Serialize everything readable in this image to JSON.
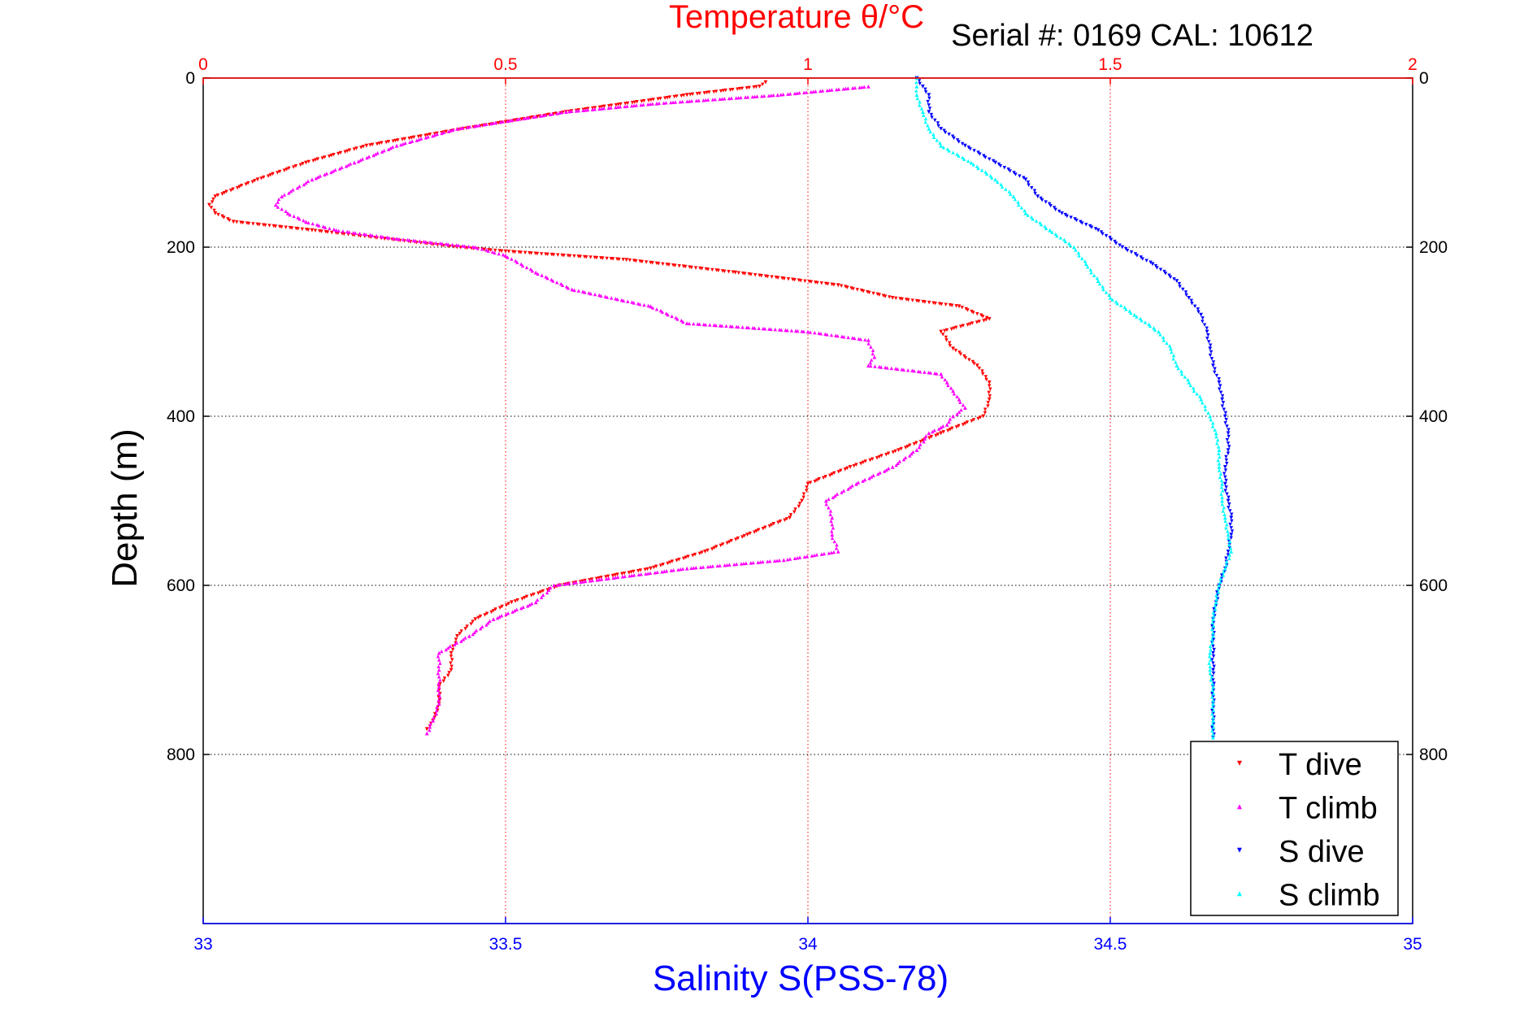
{
  "chart_data": {
    "type": "scatter",
    "title": "Temperature θ/°C",
    "subtitle": "Serial #: 0169 CAL: 10612",
    "xlabel": "Salinity S(PSS-78)",
    "ylabel": "Depth (m)",
    "x_bottom_label_color": "#0000ff",
    "x_top_label_color": "#ff0000",
    "y_axis": {
      "range": [
        0,
        1000
      ],
      "reversed": true,
      "ticks": [
        0,
        200,
        400,
        600,
        800
      ],
      "tick_labels": [
        "0",
        "200",
        "400",
        "600",
        "800"
      ]
    },
    "x_top_axis": {
      "quantity": "temperature",
      "range": [
        0,
        2
      ],
      "ticks": [
        0,
        0.5,
        1,
        1.5,
        2
      ],
      "tick_labels": [
        "0",
        "0.5",
        "1",
        "1.5",
        "2"
      ]
    },
    "x_bottom_axis": {
      "quantity": "salinity",
      "range": [
        33,
        35
      ],
      "ticks": [
        33,
        33.5,
        34,
        34.5,
        35
      ],
      "tick_labels": [
        "33",
        "33.5",
        "34",
        "34.5",
        "35"
      ]
    },
    "grid": {
      "horizontal": true,
      "vertical": true,
      "horizontal_color": "#000000",
      "vertical_color": "#ff0000"
    },
    "legend": {
      "position": "bottom-right"
    },
    "series": [
      {
        "name": "T dive",
        "axis": "temperature",
        "color": "#ff0000",
        "marker": "triangle-down",
        "depth": [
          5,
          10,
          20,
          40,
          60,
          80,
          100,
          120,
          140,
          150,
          160,
          170,
          180,
          190,
          200,
          205,
          215,
          230,
          245,
          260,
          270,
          285,
          300,
          320,
          340,
          360,
          380,
          400,
          420,
          440,
          460,
          480,
          500,
          520,
          540,
          560,
          580,
          600,
          620,
          640,
          660,
          680,
          700,
          720,
          740,
          760,
          770
        ],
        "values": [
          0.93,
          0.92,
          0.8,
          0.6,
          0.43,
          0.27,
          0.17,
          0.09,
          0.02,
          0.01,
          0.02,
          0.05,
          0.18,
          0.3,
          0.42,
          0.5,
          0.7,
          0.88,
          1.05,
          1.14,
          1.25,
          1.3,
          1.22,
          1.24,
          1.28,
          1.3,
          1.3,
          1.29,
          1.22,
          1.15,
          1.07,
          1.0,
          0.99,
          0.97,
          0.9,
          0.83,
          0.74,
          0.59,
          0.51,
          0.45,
          0.42,
          0.41,
          0.41,
          0.39,
          0.39,
          0.38,
          0.37
        ]
      },
      {
        "name": "T climb",
        "axis": "temperature",
        "color": "#ff00ff",
        "marker": "triangle-up",
        "depth": [
          10,
          20,
          30,
          40,
          60,
          80,
          100,
          120,
          140,
          150,
          160,
          170,
          180,
          190,
          200,
          210,
          230,
          250,
          270,
          290,
          300,
          310,
          330,
          340,
          350,
          360,
          370,
          380,
          390,
          400,
          410,
          420,
          440,
          460,
          480,
          500,
          520,
          540,
          560,
          570,
          580,
          600,
          620,
          640,
          660,
          680,
          700,
          720,
          740,
          760,
          775
        ],
        "values": [
          1.1,
          0.95,
          0.75,
          0.6,
          0.42,
          0.32,
          0.25,
          0.18,
          0.13,
          0.12,
          0.14,
          0.17,
          0.22,
          0.32,
          0.45,
          0.5,
          0.55,
          0.61,
          0.74,
          0.8,
          1.0,
          1.1,
          1.11,
          1.1,
          1.22,
          1.23,
          1.24,
          1.25,
          1.26,
          1.24,
          1.23,
          1.2,
          1.18,
          1.14,
          1.08,
          1.03,
          1.04,
          1.04,
          1.05,
          0.96,
          0.8,
          0.58,
          0.55,
          0.48,
          0.44,
          0.39,
          0.39,
          0.39,
          0.39,
          0.38,
          0.37
        ]
      },
      {
        "name": "S dive",
        "axis": "salinity",
        "color": "#0000ff",
        "marker": "triangle-down",
        "depth": [
          0,
          10,
          20,
          40,
          60,
          80,
          100,
          120,
          140,
          160,
          180,
          200,
          220,
          240,
          260,
          280,
          300,
          320,
          340,
          360,
          380,
          400,
          420,
          440,
          460,
          480,
          500,
          520,
          540,
          560,
          580,
          600,
          620,
          640,
          660,
          680,
          700,
          720,
          740,
          760,
          780
        ],
        "values": [
          34.18,
          34.19,
          34.2,
          34.2,
          34.22,
          34.26,
          34.31,
          34.36,
          34.38,
          34.42,
          34.48,
          34.52,
          34.57,
          34.61,
          34.63,
          34.65,
          34.66,
          34.665,
          34.67,
          34.68,
          34.685,
          34.69,
          34.695,
          34.695,
          34.69,
          34.69,
          34.695,
          34.7,
          34.7,
          34.695,
          34.69,
          34.68,
          34.675,
          34.67,
          34.67,
          34.67,
          34.67,
          34.67,
          34.67,
          34.67,
          34.67
        ]
      },
      {
        "name": "S climb",
        "axis": "salinity",
        "color": "#00ffff",
        "marker": "triangle-up",
        "depth": [
          0,
          10,
          20,
          40,
          60,
          80,
          100,
          120,
          140,
          160,
          180,
          200,
          220,
          240,
          260,
          280,
          300,
          320,
          340,
          360,
          380,
          400,
          420,
          440,
          460,
          480,
          500,
          520,
          540,
          560,
          580,
          600,
          620,
          640,
          660,
          680,
          700,
          720,
          740,
          760,
          780
        ],
        "values": [
          34.18,
          34.18,
          34.18,
          34.19,
          34.2,
          34.22,
          34.27,
          34.31,
          34.34,
          34.36,
          34.4,
          34.44,
          34.46,
          34.48,
          34.5,
          34.54,
          34.58,
          34.6,
          34.61,
          34.63,
          34.65,
          34.665,
          34.675,
          34.68,
          34.68,
          34.685,
          34.685,
          34.69,
          34.695,
          34.7,
          34.69,
          34.68,
          34.675,
          34.67,
          34.67,
          34.665,
          34.665,
          34.67,
          34.67,
          34.67,
          34.67
        ]
      }
    ]
  }
}
